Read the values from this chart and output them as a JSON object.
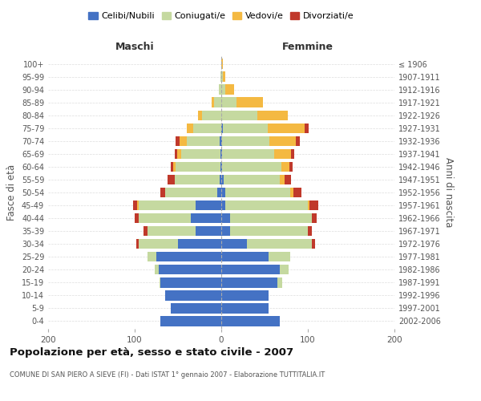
{
  "age_groups": [
    "0-4",
    "5-9",
    "10-14",
    "15-19",
    "20-24",
    "25-29",
    "30-34",
    "35-39",
    "40-44",
    "45-49",
    "50-54",
    "55-59",
    "60-64",
    "65-69",
    "70-74",
    "75-79",
    "80-84",
    "85-89",
    "90-94",
    "95-99",
    "100+"
  ],
  "birth_years": [
    "2002-2006",
    "1997-2001",
    "1992-1996",
    "1987-1991",
    "1982-1986",
    "1977-1981",
    "1972-1976",
    "1967-1971",
    "1962-1966",
    "1957-1961",
    "1952-1956",
    "1947-1951",
    "1942-1946",
    "1937-1941",
    "1932-1936",
    "1927-1931",
    "1922-1926",
    "1917-1921",
    "1912-1916",
    "1907-1911",
    "≤ 1906"
  ],
  "male": {
    "celibe": [
      70,
      58,
      65,
      70,
      72,
      75,
      50,
      30,
      35,
      30,
      5,
      2,
      1,
      1,
      2,
      0,
      0,
      0,
      0,
      0,
      0
    ],
    "coniugato": [
      0,
      0,
      0,
      1,
      5,
      10,
      45,
      55,
      60,
      65,
      60,
      52,
      52,
      45,
      38,
      32,
      22,
      8,
      3,
      1,
      0
    ],
    "vedovo": [
      0,
      0,
      0,
      0,
      0,
      0,
      0,
      0,
      0,
      2,
      0,
      0,
      3,
      5,
      8,
      8,
      5,
      3,
      0,
      0,
      0
    ],
    "divorziato": [
      0,
      0,
      0,
      0,
      0,
      0,
      3,
      5,
      5,
      5,
      5,
      8,
      2,
      3,
      5,
      0,
      0,
      0,
      0,
      0,
      0
    ]
  },
  "female": {
    "nubile": [
      68,
      55,
      55,
      65,
      68,
      55,
      30,
      10,
      10,
      5,
      5,
      3,
      1,
      1,
      1,
      2,
      0,
      0,
      0,
      0,
      0
    ],
    "coniugata": [
      0,
      0,
      0,
      5,
      10,
      25,
      75,
      90,
      95,
      95,
      75,
      65,
      68,
      60,
      55,
      52,
      42,
      18,
      5,
      2,
      0
    ],
    "vedova": [
      0,
      0,
      0,
      0,
      0,
      0,
      0,
      0,
      0,
      2,
      3,
      5,
      10,
      20,
      30,
      42,
      35,
      30,
      10,
      3,
      2
    ],
    "divorziata": [
      0,
      0,
      0,
      0,
      0,
      0,
      3,
      5,
      5,
      10,
      10,
      8,
      3,
      3,
      5,
      5,
      0,
      0,
      0,
      0,
      0
    ]
  },
  "colors": {
    "celibe": "#4472c4",
    "coniugato": "#c5d9a0",
    "vedovo": "#f4b942",
    "divorziato": "#c0392b"
  },
  "legend_labels": [
    "Celibi/Nubili",
    "Coniugati/e",
    "Vedovi/e",
    "Divorziati/e"
  ],
  "title": "Popolazione per età, sesso e stato civile - 2007",
  "subtitle": "COMUNE DI SAN PIERO A SIEVE (FI) - Dati ISTAT 1° gennaio 2007 - Elaborazione TUTTITALIA.IT",
  "xlabel_left": "Maschi",
  "xlabel_right": "Femmine",
  "ylabel_left": "Fasce di età",
  "ylabel_right": "Anni di nascita",
  "xlim": 200,
  "background_color": "#ffffff"
}
